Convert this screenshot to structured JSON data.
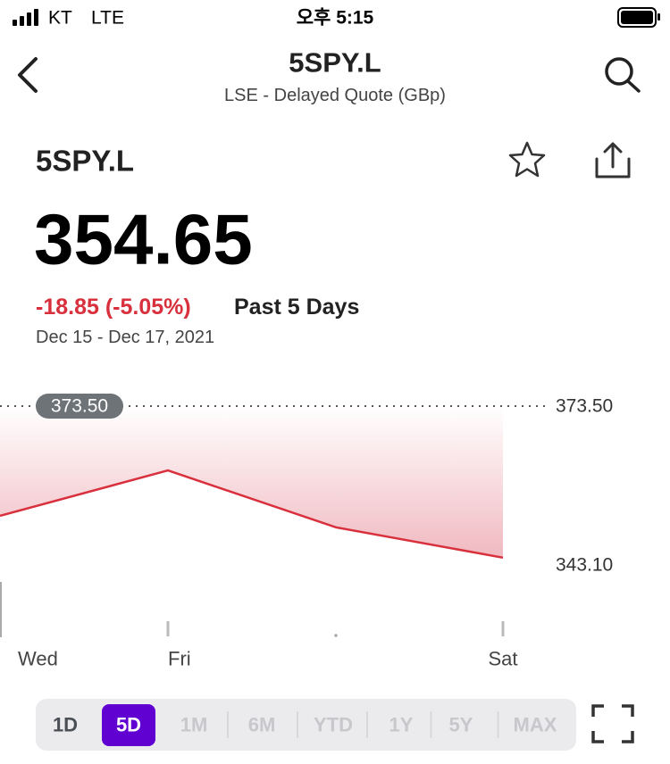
{
  "status_bar": {
    "carrier": "KT",
    "network": "LTE",
    "time": "오후 5:15"
  },
  "header": {
    "title": "5SPY.L",
    "subtitle": "LSE - Delayed Quote (GBp)"
  },
  "quote": {
    "symbol": "5SPY.L",
    "price": "354.65",
    "change": "-18.85 (-5.05%)",
    "period": "Past 5 Days",
    "date_range": "Dec 15 - Dec 17, 2021"
  },
  "chart": {
    "type": "line",
    "categories": [
      "Wed",
      "Fri",
      null,
      "Sat"
    ],
    "values": [
      352.5,
      361.2,
      350.3,
      344.5
    ],
    "color": "#d8303c",
    "ylim": [
      343.1,
      373.5
    ],
    "yticks": [
      {
        "value": 343.1,
        "label": "343.10"
      },
      {
        "value": 373.5,
        "label": "373.50"
      }
    ]
  },
  "ranges": {
    "options": [
      "1D",
      "5D",
      "1M",
      "6M",
      "YTD",
      "1Y",
      "5Y",
      "MAX"
    ],
    "selected": 1
  }
}
